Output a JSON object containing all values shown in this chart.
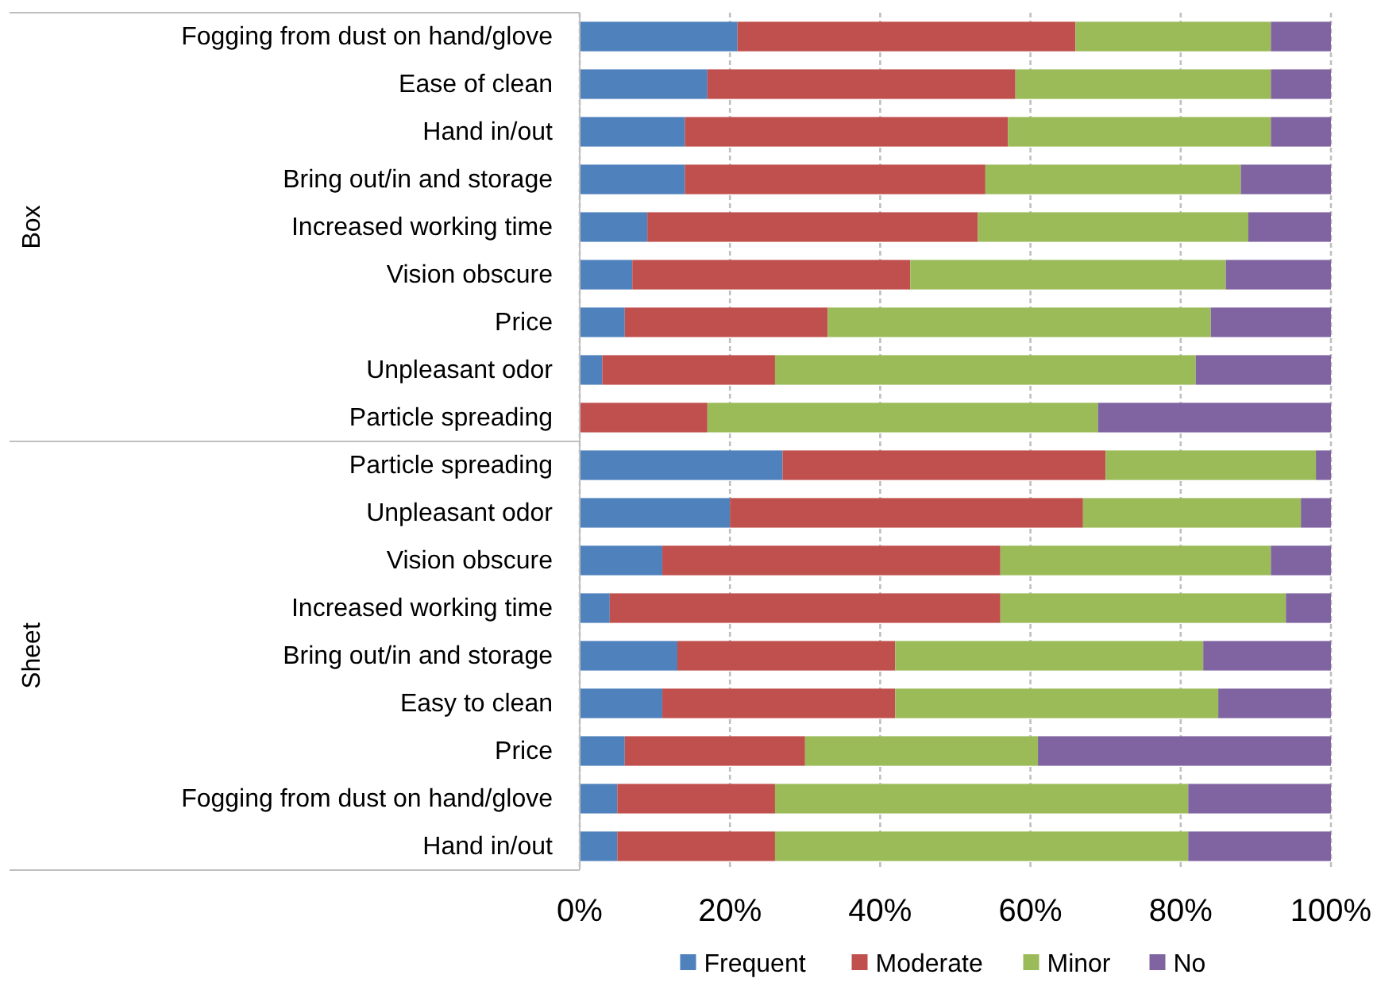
{
  "chart_data": {
    "type": "bar",
    "orientation": "horizontal",
    "stacked": true,
    "categories": [
      "Fogging from dust on hand/glove",
      "Ease of clean",
      "Hand in/out",
      "Bring out/in and storage",
      "Increased working time",
      "Vision obscure",
      "Price",
      "Unpleasant odor",
      "Particle spreading",
      "Particle spreading",
      "Unpleasant odor",
      "Vision obscure",
      "Increased working time",
      "Bring out/in and storage",
      "Easy to clean",
      "Price",
      "Fogging from dust on hand/glove",
      "Hand in/out"
    ],
    "series": [
      {
        "name": "Frequent",
        "color": "#4f81bd",
        "values": [
          21,
          17,
          14,
          14,
          9,
          7,
          6,
          3,
          0,
          27,
          20,
          11,
          4,
          13,
          11,
          6,
          5,
          5
        ]
      },
      {
        "name": "Moderate",
        "color": "#c0504d",
        "values": [
          45,
          41,
          43,
          40,
          44,
          37,
          27,
          23,
          17,
          43,
          47,
          45,
          52,
          29,
          31,
          24,
          21,
          21
        ]
      },
      {
        "name": "Minor",
        "color": "#9bbb59",
        "values": [
          26,
          34,
          35,
          34,
          36,
          42,
          51,
          56,
          52,
          28,
          29,
          36,
          38,
          41,
          43,
          31,
          55,
          55
        ]
      },
      {
        "name": "No",
        "color": "#8064a2",
        "values": [
          8,
          8,
          8,
          12,
          11,
          14,
          16,
          18,
          31,
          2,
          4,
          8,
          6,
          17,
          15,
          39,
          19,
          19
        ]
      }
    ],
    "annotations": [
      "Box",
      "Sheet"
    ],
    "xlim": [
      0,
      100
    ],
    "xticks": [
      {
        "value": 0,
        "label": "0%"
      },
      {
        "value": 20,
        "label": "20%"
      },
      {
        "value": 40,
        "label": "40%"
      },
      {
        "value": 60,
        "label": "60%"
      },
      {
        "value": 80,
        "label": "80%"
      },
      {
        "value": 100,
        "label": "100%"
      }
    ],
    "grid": "x",
    "legend": "bottom"
  }
}
